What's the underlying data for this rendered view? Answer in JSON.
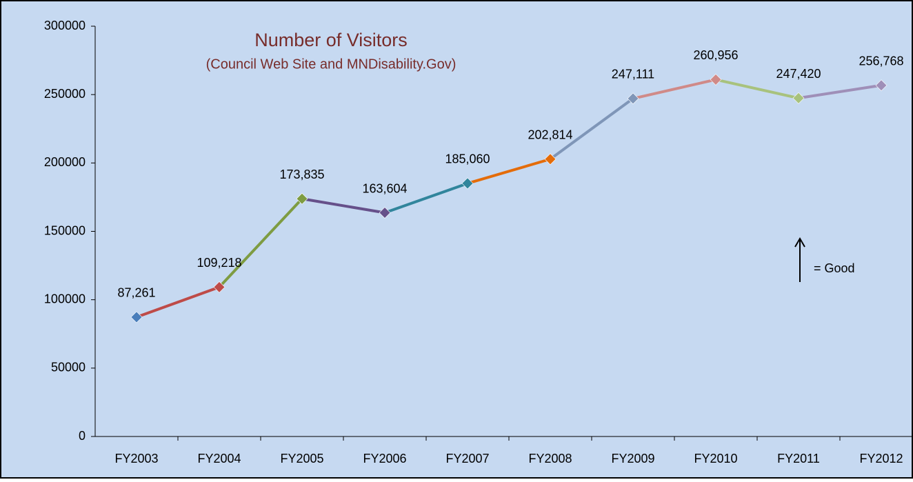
{
  "chart_data": {
    "type": "line",
    "title": "Number of Visitors",
    "subtitle": "(Council Web Site and MNDisability.Gov)",
    "annotation": "= Good",
    "categories": [
      "FY2003",
      "FY2004",
      "FY2005",
      "FY2006",
      "FY2007",
      "FY2008",
      "FY2009",
      "FY2010",
      "FY2011",
      "FY2012"
    ],
    "values": [
      87261,
      109218,
      173835,
      163604,
      185060,
      202814,
      247111,
      260956,
      247420,
      256768
    ],
    "value_labels": [
      "87,261",
      "109,218",
      "173,835",
      "163,604",
      "185,060",
      "202,814",
      "247,111",
      "260,956",
      "247,420",
      "256,768"
    ],
    "colors": [
      "#4a7ebb",
      "#be4b48",
      "#7e9c42",
      "#66508a",
      "#31859c",
      "#e46c0a",
      "#7f96b8",
      "#d08a88",
      "#a8c27d",
      "#9f8fb8"
    ],
    "ylim": [
      0,
      300000
    ],
    "yticks": [
      0,
      50000,
      100000,
      150000,
      200000,
      250000,
      300000
    ]
  }
}
